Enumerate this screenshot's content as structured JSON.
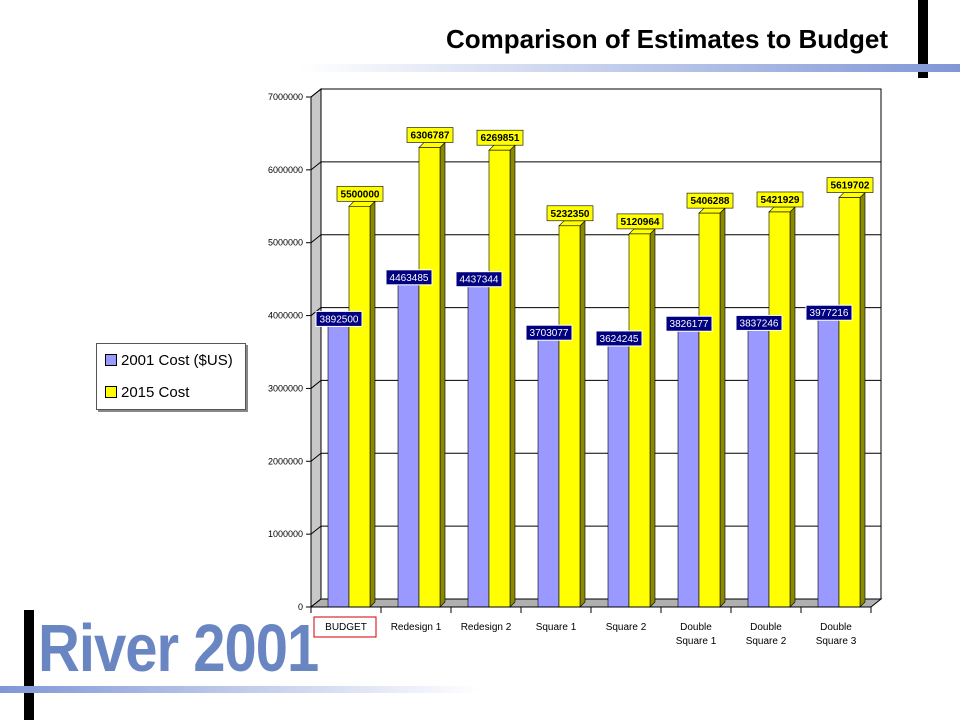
{
  "slide": {
    "title": "Comparison of Estimates to Budget",
    "watermark": "River 2001"
  },
  "colors": {
    "series_2001": "#9999ff",
    "series_2015": "#ffff00",
    "highlight_box": "#cc0000",
    "label_box_2001": "#000080",
    "accent_bar": "#8096d6"
  },
  "chart_data": {
    "type": "bar",
    "title": "",
    "xlabel": "",
    "ylabel": "",
    "ylim": [
      0,
      7000000
    ],
    "y_ticks": [
      "0",
      "1000000",
      "2000000",
      "3000000",
      "4000000",
      "5000000",
      "6000000",
      "7000000"
    ],
    "categories": [
      "BUDGET",
      "Redesign 1",
      "Redesign 2",
      "Square 1",
      "Square 2",
      "Double\nSquare 1",
      "Double\nSquare 2",
      "Double\nSquare 3"
    ],
    "highlighted_category": "BUDGET",
    "series": [
      {
        "name": "2001 Cost ($US)",
        "values": [
          3892500,
          4463485,
          4437344,
          3703077,
          3624245,
          3826177,
          3837246,
          3977216
        ]
      },
      {
        "name": "2015 Cost",
        "values": [
          5500000,
          6306787,
          6269851,
          5232350,
          5120964,
          5406288,
          5421929,
          5619702
        ]
      }
    ],
    "grid": true,
    "legend_position": "left"
  }
}
